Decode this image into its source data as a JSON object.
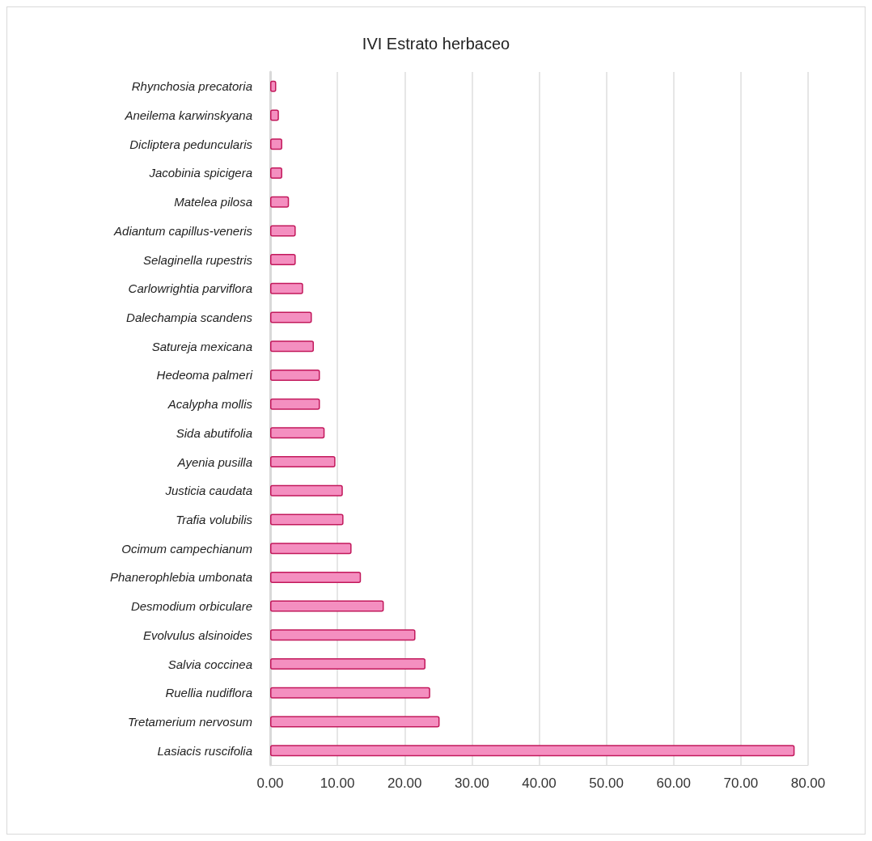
{
  "chart_data": {
    "type": "bar",
    "orientation": "horizontal",
    "title": "IVI Estrato herbaceo",
    "categories": [
      "Rhynchosia precatoria",
      "Aneilema karwinskyana",
      "Dicliptera peduncularis",
      "Jacobinia spicigera",
      "Matelea pilosa",
      "Adiantum capillus-veneris",
      "Selaginella rupestris",
      "Carlowrightia parviflora",
      "Dalechampia scandens",
      "Satureja mexicana",
      "Hedeoma palmeri",
      "Acalypha mollis",
      "Sida abutifolia",
      "Ayenia pusilla",
      "Justicia caudata",
      "Trafia volubilis",
      "Ocimum campechianum",
      "Phanerophlebia umbonata",
      "Desmodium orbiculare",
      "Evolvulus alsinoides",
      "Salvia coccinea",
      "Ruellia nudiflora",
      "Tretamerium nervosum",
      "Lasiacis ruscifolia"
    ],
    "values": [
      0.9,
      1.3,
      1.8,
      1.8,
      2.8,
      3.8,
      3.8,
      4.9,
      6.2,
      6.5,
      7.4,
      7.4,
      8.1,
      9.7,
      10.8,
      10.9,
      12.1,
      13.5,
      16.9,
      21.6,
      23.1,
      23.8,
      25.2,
      78
    ],
    "color": "#f48fc0",
    "xlim": [
      0,
      80
    ],
    "xticks": [
      {
        "value": 0,
        "label": "0.00"
      },
      {
        "value": 10,
        "label": "10.00"
      },
      {
        "value": 20,
        "label": "20.00"
      },
      {
        "value": 30,
        "label": "30.00"
      },
      {
        "value": 40,
        "label": "40.00"
      },
      {
        "value": 50,
        "label": "50.00"
      },
      {
        "value": 60,
        "label": "60.00"
      },
      {
        "value": 70,
        "label": "70.00"
      },
      {
        "value": 80,
        "label": "80.00"
      }
    ],
    "grid": "x"
  }
}
